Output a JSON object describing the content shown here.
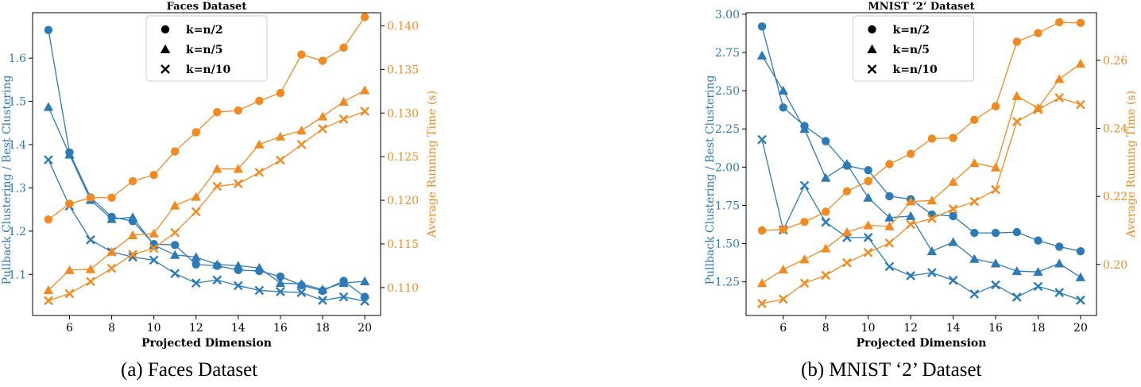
{
  "captions": [
    "(a) Faces Dataset",
    "(b) MNIST ‘2’ Dataset"
  ],
  "colors": {
    "left": "#2c7bb6",
    "right": "#f28a1f"
  },
  "chart_data": [
    {
      "type": "line",
      "title": "Faces Dataset",
      "xlabel": "Projected Dimension",
      "ylabel_left": "Pullback Clustering / Best Clustering",
      "ylabel_right": "Average Running Time (s)",
      "x": [
        5,
        6,
        7,
        8,
        9,
        10,
        11,
        12,
        13,
        14,
        15,
        16,
        17,
        18,
        19,
        20
      ],
      "xticks": [
        6,
        8,
        10,
        12,
        14,
        16,
        18,
        20
      ],
      "xlim": [
        4.25,
        20.75
      ],
      "ylim_left": [
        1.005,
        1.705
      ],
      "yticks_left": [
        1.1,
        1.2,
        1.3,
        1.4,
        1.5,
        1.6
      ],
      "ylim_right": [
        0.1068,
        0.1415
      ],
      "yticks_right": [
        0.11,
        0.115,
        0.12,
        0.125,
        0.13,
        0.135,
        0.14
      ],
      "legend": {
        "placement": "top-center",
        "entries": [
          {
            "label": "k=n/2",
            "marker": "circle"
          },
          {
            "label": "k=n/5",
            "marker": "triangle"
          },
          {
            "label": "k=n/10",
            "marker": "x"
          }
        ]
      },
      "series": [
        {
          "axis": "left",
          "marker": "circle",
          "values": [
            1.665,
            1.382,
            1.278,
            1.233,
            1.223,
            1.17,
            1.168,
            1.123,
            1.12,
            1.11,
            1.108,
            1.095,
            1.075,
            1.062,
            1.085,
            1.048
          ]
        },
        {
          "axis": "left",
          "marker": "triangle",
          "values": [
            1.487,
            1.377,
            1.272,
            1.228,
            1.232,
            1.168,
            1.145,
            1.14,
            1.123,
            1.12,
            1.115,
            1.08,
            1.078,
            1.065,
            1.08,
            1.084
          ]
        },
        {
          "axis": "left",
          "marker": "x",
          "values": [
            1.365,
            1.258,
            1.18,
            1.152,
            1.14,
            1.133,
            1.102,
            1.08,
            1.087,
            1.074,
            1.063,
            1.06,
            1.058,
            1.04,
            1.048,
            1.038
          ]
        },
        {
          "axis": "right",
          "marker": "circle",
          "values": [
            0.1178,
            0.1196,
            0.1203,
            0.1203,
            0.1222,
            0.1229,
            0.1256,
            0.1278,
            0.1301,
            0.1303,
            0.1314,
            0.1323,
            0.1367,
            0.136,
            0.1375,
            0.141
          ]
        },
        {
          "axis": "right",
          "marker": "triangle",
          "values": [
            0.1097,
            0.112,
            0.1121,
            0.1141,
            0.116,
            0.1162,
            0.1194,
            0.1204,
            0.1236,
            0.1236,
            0.1264,
            0.1273,
            0.128,
            0.1296,
            0.1313,
            0.1326
          ]
        },
        {
          "axis": "right",
          "marker": "x",
          "values": [
            0.1085,
            0.1093,
            0.1107,
            0.1122,
            0.1138,
            0.1145,
            0.1163,
            0.1187,
            0.1216,
            0.1219,
            0.1232,
            0.1246,
            0.1264,
            0.1282,
            0.1293,
            0.1302
          ]
        }
      ]
    },
    {
      "type": "line",
      "title": "MNIST ‘2’ Dataset",
      "xlabel": "Projected Dimension",
      "ylabel_left": "Pullback Clustering / Best Clustering",
      "ylabel_right": "Average Running Time (s)",
      "x": [
        5,
        6,
        7,
        8,
        9,
        10,
        11,
        12,
        13,
        14,
        15,
        16,
        17,
        18,
        19,
        20
      ],
      "xticks": [
        6,
        8,
        10,
        12,
        14,
        16,
        18,
        20
      ],
      "xlim": [
        4.25,
        20.75
      ],
      "ylim_left": [
        1.03,
        3.01
      ],
      "yticks_left": [
        1.25,
        1.5,
        1.75,
        2.0,
        2.25,
        2.5,
        2.75,
        3.0
      ],
      "yticks_left_labels": [
        "1.25",
        "1.50",
        "1.75",
        "2.00",
        "2.25",
        "2.50",
        "2.75",
        "3.00"
      ],
      "ylim_right": [
        0.185,
        0.274
      ],
      "yticks_right": [
        0.2,
        0.22,
        0.24,
        0.26
      ],
      "yticks_right_labels": [
        "0.20",
        "0.22",
        "0.24",
        "0.26"
      ],
      "legend": {
        "placement": "top-center",
        "entries": [
          {
            "label": "k=n/2",
            "marker": "circle"
          },
          {
            "label": "k=n/5",
            "marker": "triangle"
          },
          {
            "label": "k=n/10",
            "marker": "x"
          }
        ]
      },
      "series": [
        {
          "axis": "left",
          "marker": "circle",
          "values": [
            2.92,
            2.39,
            2.27,
            2.17,
            2.01,
            1.98,
            1.81,
            1.79,
            1.69,
            1.68,
            1.57,
            1.57,
            1.575,
            1.52,
            1.48,
            1.45
          ]
        },
        {
          "axis": "left",
          "marker": "triangle",
          "values": [
            2.73,
            2.5,
            2.25,
            1.93,
            2.02,
            1.8,
            1.67,
            1.68,
            1.45,
            1.51,
            1.4,
            1.37,
            1.32,
            1.315,
            1.37,
            1.28
          ]
        },
        {
          "axis": "left",
          "marker": "x",
          "values": [
            2.18,
            1.59,
            1.88,
            1.64,
            1.54,
            1.54,
            1.35,
            1.29,
            1.31,
            1.26,
            1.17,
            1.23,
            1.15,
            1.22,
            1.18,
            1.13
          ]
        },
        {
          "axis": "right",
          "marker": "circle",
          "values": [
            0.21,
            0.2103,
            0.2125,
            0.2155,
            0.2215,
            0.2245,
            0.2295,
            0.2325,
            0.237,
            0.2372,
            0.2425,
            0.2465,
            0.2655,
            0.268,
            0.2712,
            0.271
          ]
        },
        {
          "axis": "right",
          "marker": "triangle",
          "values": [
            0.1945,
            0.1985,
            0.2015,
            0.2047,
            0.2095,
            0.2115,
            0.2112,
            0.2185,
            0.2188,
            0.2243,
            0.2298,
            0.2285,
            0.2495,
            0.246,
            0.2545,
            0.259
          ]
        },
        {
          "axis": "right",
          "marker": "x",
          "values": [
            0.1885,
            0.1898,
            0.1945,
            0.1968,
            0.2005,
            0.2035,
            0.2063,
            0.2118,
            0.2135,
            0.2163,
            0.2185,
            0.222,
            0.242,
            0.2455,
            0.249,
            0.247
          ]
        }
      ]
    }
  ]
}
